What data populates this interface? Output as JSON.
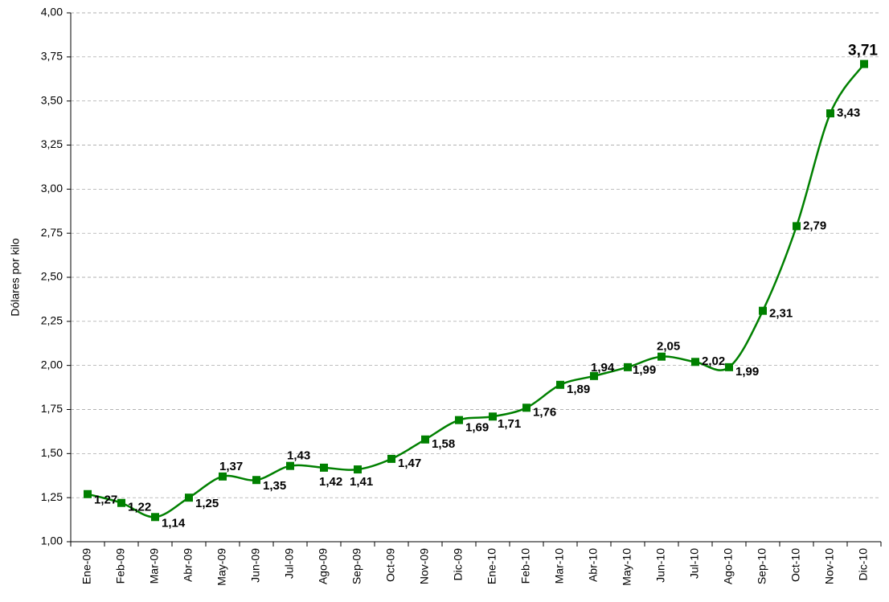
{
  "chart_data": {
    "type": "line",
    "y_label": "Dólares por kilo",
    "categories": [
      "Ene-09",
      "Feb-09",
      "Mar-09",
      "Abr-09",
      "May-09",
      "Jun-09",
      "Jul-09",
      "Ago-09",
      "Sep-09",
      "Oct-09",
      "Nov-09",
      "Dic-09",
      "Ene-10",
      "Feb-10",
      "Mar-10",
      "Abr-10",
      "May-10",
      "Jun-10",
      "Jul-10",
      "Ago-10",
      "Sep-10",
      "Oct-10",
      "Nov-10",
      "Dic-10"
    ],
    "values": [
      1.27,
      1.22,
      1.14,
      1.25,
      1.37,
      1.35,
      1.43,
      1.42,
      1.41,
      1.47,
      1.58,
      1.69,
      1.71,
      1.76,
      1.89,
      1.94,
      1.99,
      2.05,
      2.02,
      1.99,
      2.31,
      2.79,
      3.43,
      3.71
    ],
    "value_labels": [
      "1,27",
      "1,22",
      "1,14",
      "1,25",
      "1,37",
      "1,35",
      "1,43",
      "1,42",
      "1,41",
      "1,47",
      "1,58",
      "1,69",
      "1,71",
      "1,76",
      "1,89",
      "1,94",
      "1,99",
      "2,05",
      "2,02",
      "1,99",
      "2,31",
      "2,79",
      "3,43",
      "3,71"
    ],
    "color": "#008000",
    "ylim": [
      1,
      4
    ],
    "yticks": [
      {
        "value": 1,
        "label": "1,00"
      },
      {
        "value": 1.25,
        "label": "1,25"
      },
      {
        "value": 1.5,
        "label": "1,50"
      },
      {
        "value": 1.75,
        "label": "1,75"
      },
      {
        "value": 2,
        "label": "2,00"
      },
      {
        "value": 2.25,
        "label": "2,25"
      },
      {
        "value": 2.5,
        "label": "2,50"
      },
      {
        "value": 2.75,
        "label": "2,75"
      },
      {
        "value": 3,
        "label": "3,00"
      },
      {
        "value": 3.25,
        "label": "3,25"
      },
      {
        "value": 3.5,
        "label": "3,50"
      },
      {
        "value": 3.75,
        "label": "3,75"
      },
      {
        "value": 4,
        "label": "4,00"
      }
    ],
    "grid": true
  }
}
